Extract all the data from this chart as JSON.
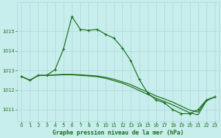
{
  "xlabel": "Graphe pression niveau de la mer (hPa)",
  "bg_color": "#c8eded",
  "grid_color": "#a8d8d8",
  "line_color": "#1a6e1a",
  "x": [
    0,
    1,
    2,
    3,
    4,
    5,
    6,
    7,
    8,
    9,
    10,
    11,
    12,
    13,
    14,
    15,
    16,
    17,
    18,
    19,
    20,
    21,
    22,
    23
  ],
  "line1_y": [
    1012.7,
    1012.5,
    1012.75,
    1012.75,
    1013.05,
    1014.1,
    1015.75,
    1015.1,
    1015.05,
    1015.1,
    1014.85,
    1014.65,
    1014.15,
    1013.5,
    1012.55,
    1011.85,
    1011.5,
    1011.35,
    1011.0,
    1010.8,
    1010.8,
    1011.0,
    1011.5,
    1011.65
  ],
  "line2_y": [
    1012.7,
    1012.5,
    1012.75,
    1012.75,
    1012.78,
    1012.8,
    1012.8,
    1012.78,
    1012.75,
    1012.72,
    1012.65,
    1012.55,
    1012.42,
    1012.28,
    1012.08,
    1011.9,
    1011.7,
    1011.55,
    1011.38,
    1011.18,
    1010.98,
    1010.88,
    1011.48,
    1011.65
  ],
  "line3_y": [
    1012.7,
    1012.5,
    1012.75,
    1012.75,
    1012.76,
    1012.78,
    1012.78,
    1012.75,
    1012.72,
    1012.68,
    1012.6,
    1012.48,
    1012.35,
    1012.18,
    1011.98,
    1011.78,
    1011.58,
    1011.42,
    1011.24,
    1011.04,
    1010.84,
    1010.74,
    1011.46,
    1011.65
  ],
  "xlim": [
    -0.5,
    23.5
  ],
  "ylim": [
    1010.4,
    1016.5
  ],
  "yticks": [
    1011,
    1012,
    1013,
    1014,
    1015
  ],
  "xticks": [
    0,
    1,
    2,
    3,
    4,
    5,
    6,
    7,
    8,
    9,
    10,
    11,
    12,
    13,
    14,
    15,
    16,
    17,
    18,
    19,
    20,
    21,
    22,
    23
  ],
  "tick_fontsize": 5,
  "xlabel_fontsize": 6,
  "linewidth": 0.9,
  "markersize": 3.0
}
